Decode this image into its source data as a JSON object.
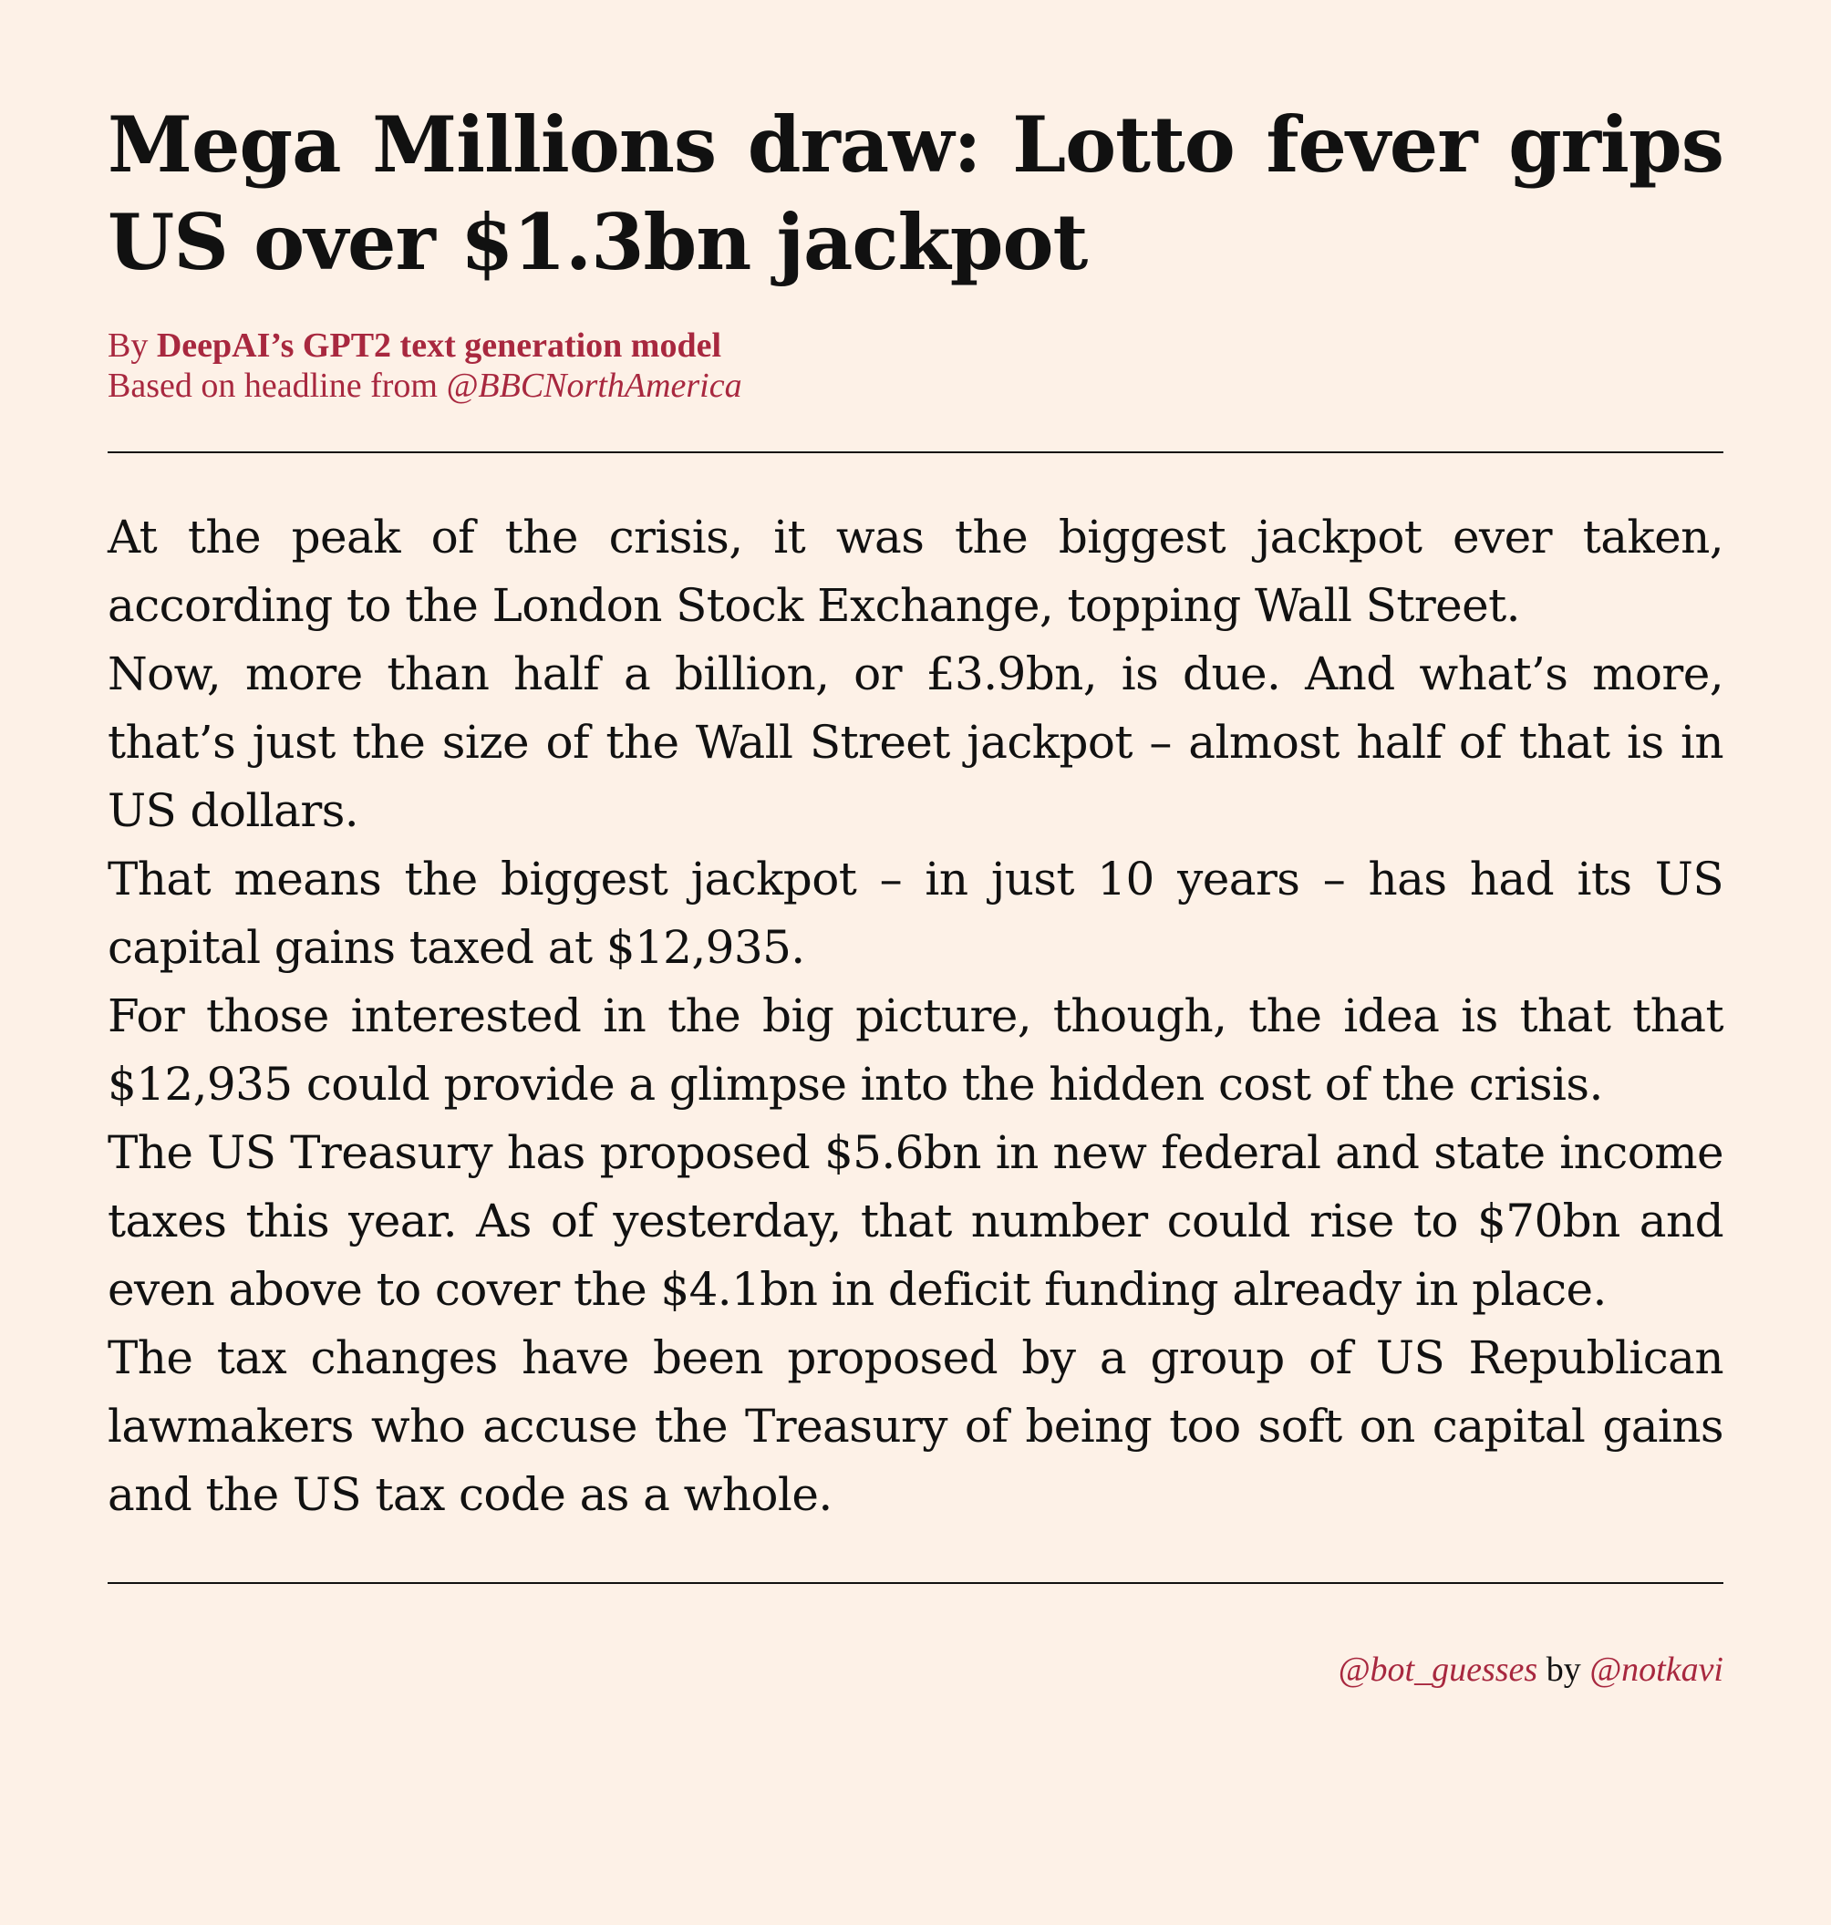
{
  "article": {
    "headline": "Mega Millions draw: Lotto fever grips US over $1.3bn jackpot",
    "byline_prefix": "By ",
    "author": "DeepAI’s GPT2 text generation model",
    "source_prefix": "Based on headline from ",
    "source_handle": "@BBCNorthAmerica",
    "paragraphs": [
      "At the peak of the crisis, it was the biggest jackpot ever taken, according to the London Stock Exchange, topping Wall Street.",
      "Now, more than half a billion, or £3.9bn, is due. And what’s more, that’s just the size of the Wall Street jackpot – almost half of that is in US dollars.",
      "That means the biggest jackpot – in just 10 years – has had its US capital gains taxed at $12,935.",
      "For those interested in the big picture, though, the idea is that that $12,935 could provide a glimpse into the hidden cost of the crisis.",
      "The US Treasury has proposed $5.6bn in new federal and state income taxes this year. As of yesterday, that number could rise to $70bn and even above to cover the $4.1bn in deficit funding already in place.",
      "The tax changes have been proposed by a group of US Republican lawmakers who accuse the Treasury of being too soft on capital gains and the US tax code as a whole."
    ]
  },
  "footer": {
    "bot_handle": "@bot_guesses",
    "by_word": " by ",
    "creator_handle": "@notkavi"
  },
  "colors": {
    "background": "#fdf1e7",
    "accent": "#a8283f",
    "text": "#111111"
  }
}
